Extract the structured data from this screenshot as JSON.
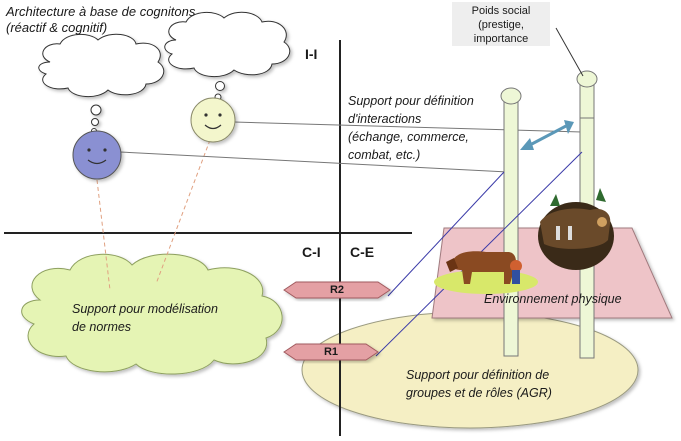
{
  "architecture": {
    "title_line1": "Architecture à base de cognitons",
    "title_line2": "(réactif & cognitif)"
  },
  "quadrants": {
    "ii": "I-I",
    "ci": "C-I",
    "ce": "C-E"
  },
  "social_weight": {
    "line1": "Poids social",
    "line2": "(prestige,",
    "line3": "importance"
  },
  "interactions": {
    "line1": "Support pour définition",
    "line2": "d'interactions",
    "line3": "(échange, commerce,",
    "line4": "combat, etc.)"
  },
  "norms": {
    "line1": "Support pour modélisation",
    "line2": "de normes"
  },
  "roles": {
    "line1": "Support pour définition de",
    "line2": "groupes et de rôles (AGR)"
  },
  "environment": {
    "label": "Environnement physique"
  },
  "regions": {
    "r1": "R1",
    "r2": "R2"
  },
  "colors": {
    "cloud_fill": "#e5f4b4",
    "ellipse_fill": "#f5efc4",
    "plane_fill": "#eec4c8",
    "pillar_fill": "#eef7d6",
    "agent_blue": "#8a90d2",
    "agent_yellow": "#f3f6cc",
    "tag_fill": "#e4a0a4",
    "arrow": "#5b98b8",
    "line_blue": "#3a3aa8"
  },
  "icons": [
    "thought-cloud-icon",
    "smiley-agent-icon",
    "cow-farmer-icon",
    "plough-horses-icon",
    "double-arrow-icon"
  ]
}
